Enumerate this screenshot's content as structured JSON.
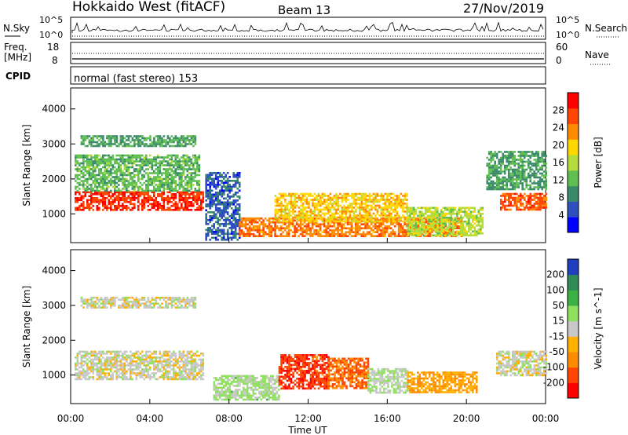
{
  "header": {
    "station": "Hokkaido West (fitACF)",
    "beam": "Beam 13",
    "date": "27/Nov/2019"
  },
  "top_panels": {
    "nsky_label": "N.Sky",
    "nsky_ticks": [
      "10^5",
      "10^0"
    ],
    "nsearch_label": "N.Search",
    "freq_label_1": "Freq.",
    "freq_label_2": "[MHz]",
    "freq_ticks": [
      "18",
      "8"
    ],
    "nave_label": "Nave",
    "nave_ticks": [
      "60",
      "0"
    ],
    "cpid_label": "CPID",
    "cpid_value": "normal (fast stereo) 153"
  },
  "chart_data": [
    {
      "type": "heatmap",
      "title": "",
      "xlabel": "Time UT",
      "ylabel": "Slant Range [km]",
      "x_ticks": [
        "00:00",
        "04:00",
        "08:00",
        "12:00",
        "16:00",
        "20:00",
        "00:00"
      ],
      "y_ticks": [
        1000,
        2000,
        3000,
        4000
      ],
      "xlim_hours": [
        0,
        24
      ],
      "ylim_km": [
        180,
        4600
      ],
      "colorbar_label": "Power [dB]",
      "colorbar_ticks": [
        28,
        24,
        20,
        16,
        12,
        8,
        4
      ],
      "colorbar_range": [
        0,
        32
      ],
      "colors": [
        "#0000ff",
        "#2f4fbf",
        "#3a8a6a",
        "#5fbf4f",
        "#b4dc3c",
        "#ffd700",
        "#ff8c00",
        "#ff4500",
        "#ff0000"
      ],
      "regions": [
        {
          "t0": 0.2,
          "t1": 6.7,
          "r0": 1100,
          "r1": 1650,
          "value": 28
        },
        {
          "t0": 0.2,
          "t1": 6.5,
          "r0": 1650,
          "r1": 2700,
          "value": 12
        },
        {
          "t0": 0.5,
          "t1": 6.3,
          "r0": 2950,
          "r1": 3250,
          "value": 10
        },
        {
          "t0": 6.8,
          "t1": 8.5,
          "r0": 250,
          "r1": 2200,
          "value": 6
        },
        {
          "t0": 8.5,
          "t1": 19.8,
          "r0": 350,
          "r1": 900,
          "value": 24
        },
        {
          "t0": 10.3,
          "t1": 17.0,
          "r0": 800,
          "r1": 1600,
          "value": 20
        },
        {
          "t0": 17.0,
          "t1": 20.8,
          "r0": 400,
          "r1": 1200,
          "value": 16
        },
        {
          "t0": 21.7,
          "t1": 24.0,
          "r0": 1100,
          "r1": 1600,
          "value": 26
        },
        {
          "t0": 21.0,
          "t1": 24.0,
          "r0": 1700,
          "r1": 2800,
          "value": 10
        }
      ]
    },
    {
      "type": "heatmap",
      "title": "",
      "xlabel": "Time UT",
      "ylabel": "Slant Range [km]",
      "x_ticks": [
        "00:00",
        "04:00",
        "08:00",
        "12:00",
        "16:00",
        "20:00",
        "00:00"
      ],
      "y_ticks": [
        1000,
        2000,
        3000,
        4000
      ],
      "xlim_hours": [
        0,
        24
      ],
      "ylim_km": [
        180,
        4600
      ],
      "colorbar_label": "Velocity [m s^-1]",
      "colorbar_ticks": [
        "200",
        "100",
        "50",
        "15",
        "-15",
        "-50",
        "-100",
        "-200"
      ],
      "colorbar_range": [
        -250,
        250
      ],
      "colors": [
        "#ff0000",
        "#ff4500",
        "#ff8c00",
        "#ffb000",
        "#c8c8c8",
        "#90e060",
        "#3cb043",
        "#2e8b57",
        "#1f3fbf"
      ],
      "regions": [
        {
          "t0": 0.2,
          "t1": 6.7,
          "r0": 900,
          "r1": 1700,
          "value": 0
        },
        {
          "t0": 0.5,
          "t1": 6.3,
          "r0": 2950,
          "r1": 3250,
          "value": 0
        },
        {
          "t0": 7.2,
          "t1": 10.5,
          "r0": 300,
          "r1": 1000,
          "value": 40
        },
        {
          "t0": 10.5,
          "t1": 13.0,
          "r0": 600,
          "r1": 1600,
          "value": -180
        },
        {
          "t0": 13.0,
          "t1": 15.0,
          "r0": 600,
          "r1": 1500,
          "value": -140
        },
        {
          "t0": 15.0,
          "t1": 17.0,
          "r0": 500,
          "r1": 1200,
          "value": 30
        },
        {
          "t0": 17.0,
          "t1": 20.5,
          "r0": 500,
          "r1": 1100,
          "value": -80
        },
        {
          "t0": 21.5,
          "t1": 24.0,
          "r0": 1000,
          "r1": 1700,
          "value": 0
        }
      ]
    }
  ]
}
